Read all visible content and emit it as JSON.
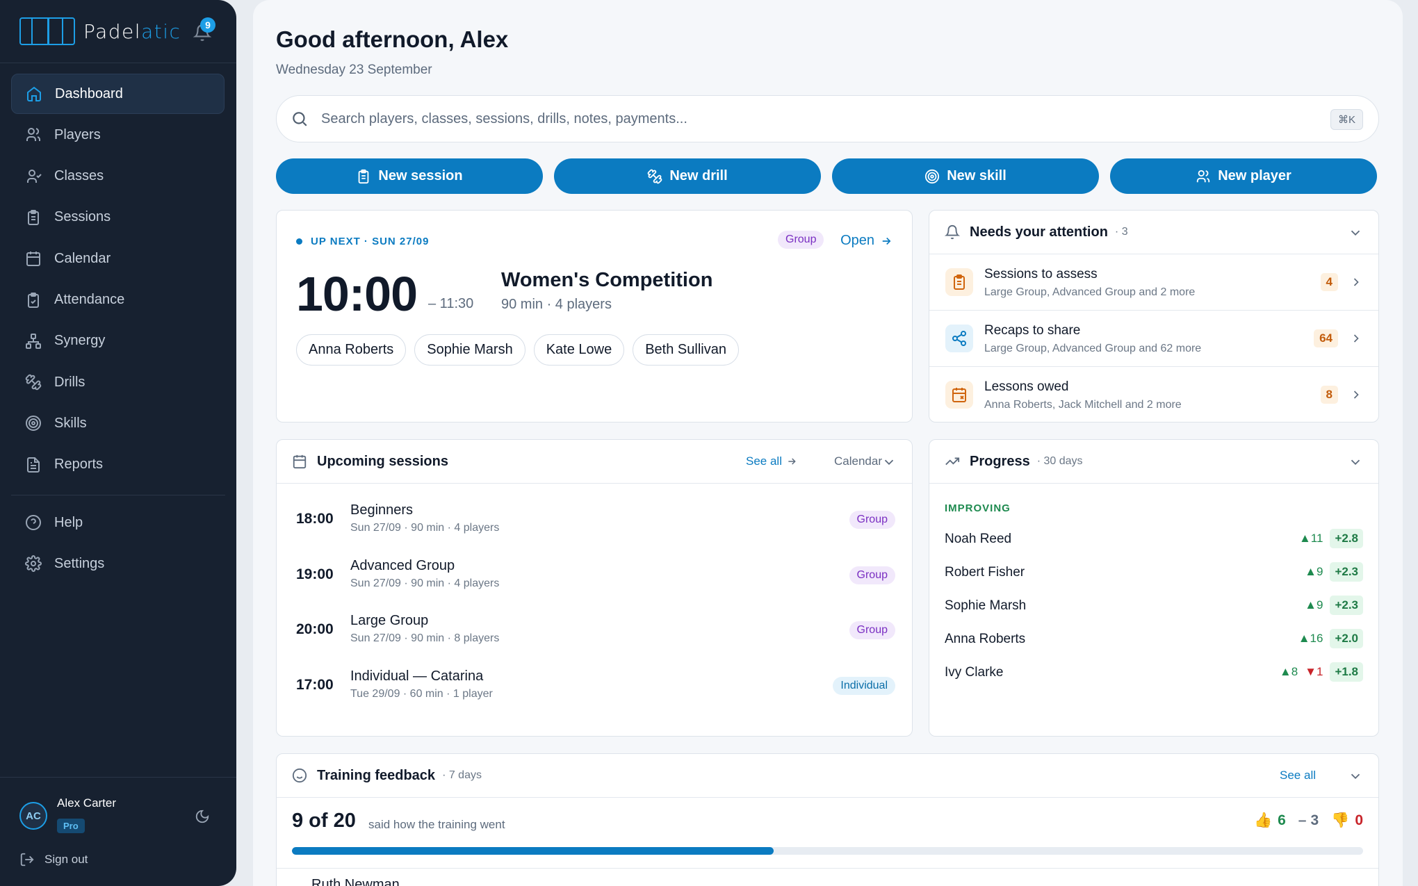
{
  "brand": {
    "name_main": "Padel",
    "name_accent": "atic",
    "notifications": "9"
  },
  "nav": {
    "items": [
      {
        "label": "Dashboard",
        "icon": "home-icon"
      },
      {
        "label": "Players",
        "icon": "users-icon"
      },
      {
        "label": "Classes",
        "icon": "user-icon"
      },
      {
        "label": "Sessions",
        "icon": "clipboard-icon"
      },
      {
        "label": "Calendar",
        "icon": "calendar-icon"
      },
      {
        "label": "Attendance",
        "icon": "clipboard-check-icon"
      },
      {
        "label": "Synergy",
        "icon": "network-icon"
      },
      {
        "label": "Drills",
        "icon": "dumbbell-icon"
      },
      {
        "label": "Skills",
        "icon": "target-icon"
      },
      {
        "label": "Reports",
        "icon": "document-icon"
      }
    ],
    "help": "Help",
    "settings": "Settings"
  },
  "user": {
    "initials": "AC",
    "name": "Alex Carter",
    "plan": "Pro",
    "signout": "Sign out"
  },
  "header": {
    "greeting": "Good afternoon, Alex",
    "date": "Wednesday 23 September"
  },
  "search": {
    "placeholder": "Search players, classes, sessions, drills, notes, payments...",
    "shortcut": "⌘K"
  },
  "actions": {
    "new_session": "New session",
    "new_drill": "New drill",
    "new_skill": "New skill",
    "new_player": "New player"
  },
  "up_next": {
    "label": "UP NEXT · SUN 27/09",
    "tag": "Group",
    "open": "Open",
    "time": "10:00",
    "end": "– 11:30",
    "name": "Women's Competition",
    "meta": "90 min · 4 players",
    "players": [
      "Anna Roberts",
      "Sophie Marsh",
      "Kate Lowe",
      "Beth Sullivan"
    ]
  },
  "attention": {
    "title": "Needs your attention",
    "count": "· 3",
    "rows": [
      {
        "title": "Sessions to assess",
        "sub": "Large Group, Advanced Group and 2 more",
        "count": "4"
      },
      {
        "title": "Recaps to share",
        "sub": "Large Group, Advanced Group and 62 more",
        "count": "64"
      },
      {
        "title": "Lessons owed",
        "sub": "Anna Roberts, Jack Mitchell and 2 more",
        "count": "8"
      }
    ]
  },
  "upcoming": {
    "title": "Upcoming sessions",
    "see_all": "See all",
    "calendar": "Calendar",
    "rows": [
      {
        "time": "18:00",
        "name": "Beginners",
        "meta": "Sun 27/09 · 90 min · 4 players",
        "tag": "Group"
      },
      {
        "time": "19:00",
        "name": "Advanced Group",
        "meta": "Sun 27/09 · 90 min · 4 players",
        "tag": "Group"
      },
      {
        "time": "20:00",
        "name": "Large Group",
        "meta": "Sun 27/09 · 90 min · 8 players",
        "tag": "Group"
      },
      {
        "time": "17:00",
        "name": "Individual — Catarina",
        "meta": "Tue 29/09 · 60 min · 1 player",
        "tag": "Individual"
      }
    ]
  },
  "progress": {
    "title": "Progress",
    "period": "· 30 days",
    "section": "IMPROVING",
    "rows": [
      {
        "name": "Noah Reed",
        "up": "▲11",
        "down": "",
        "delta": "+2.8"
      },
      {
        "name": "Robert Fisher",
        "up": "▲9",
        "down": "",
        "delta": "+2.3"
      },
      {
        "name": "Sophie Marsh",
        "up": "▲9",
        "down": "",
        "delta": "+2.3"
      },
      {
        "name": "Anna Roberts",
        "up": "▲16",
        "down": "",
        "delta": "+2.0"
      },
      {
        "name": "Ivy Clarke",
        "up": "▲8",
        "down": "▼1",
        "delta": "+1.8"
      }
    ]
  },
  "feedback": {
    "title": "Training feedback",
    "period": "· 7 days",
    "see_all": "See all",
    "big": "9 of 20",
    "text": "said how the training went",
    "positive": "6",
    "neutral": "3",
    "negative": "0",
    "ratio": 0.45,
    "partial_name": "Ruth Newman"
  }
}
